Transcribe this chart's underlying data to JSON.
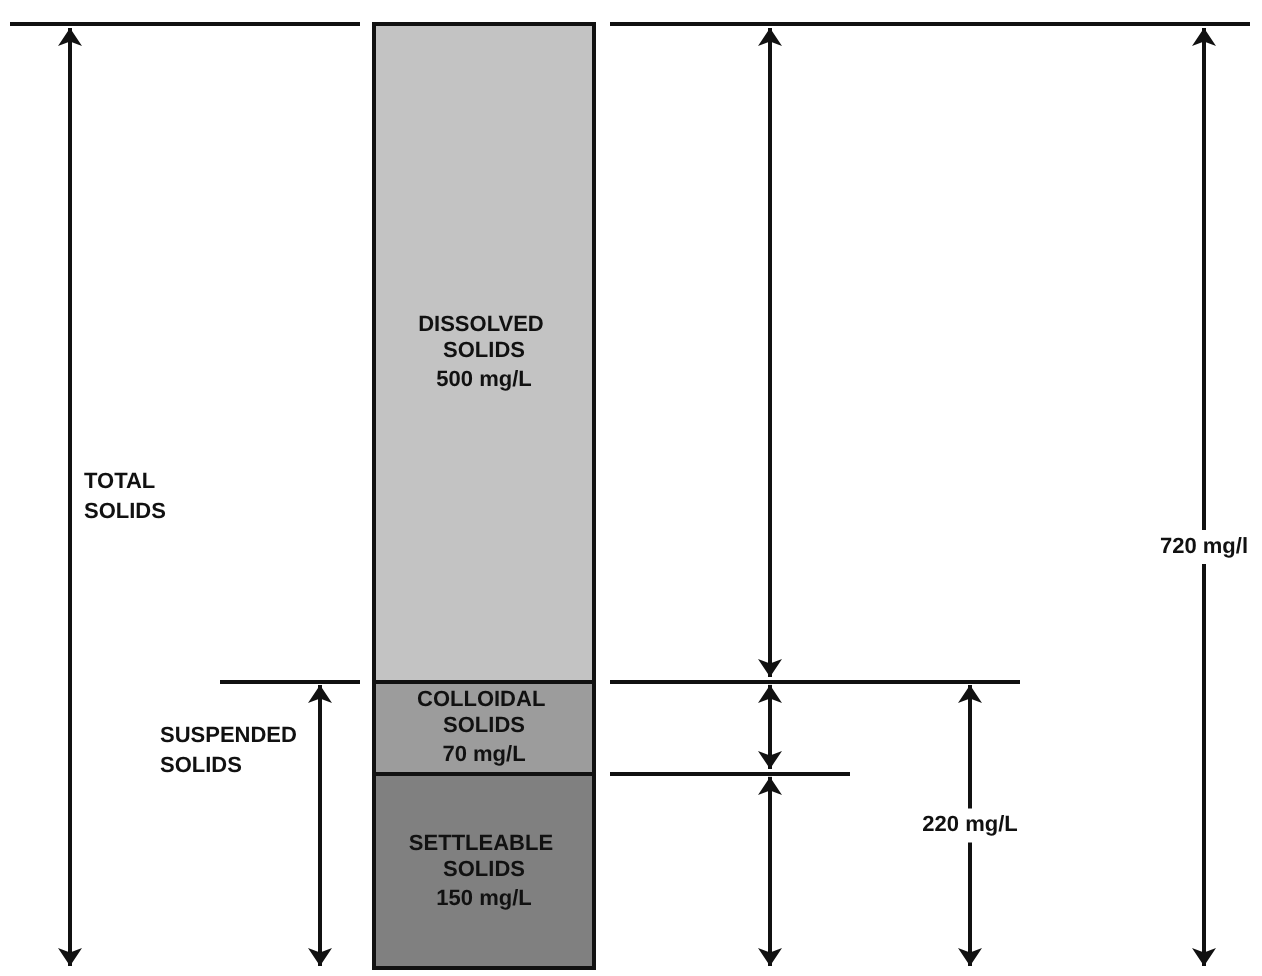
{
  "chart_data": {
    "type": "bar",
    "stacked": true,
    "categories": [
      null
    ],
    "series": [
      {
        "name": "SETTLEABLE SOLIDS",
        "color": "#808080",
        "values": [
          150
        ],
        "value_labels": [
          "150 mg/L"
        ]
      },
      {
        "name": "COLLOIDAL SOLIDS",
        "color": "#9c9c9c",
        "values": [
          70
        ],
        "value_labels": [
          "70 mg/L"
        ]
      },
      {
        "name": "DISSOLVED SOLIDS",
        "color": "#c3c3c3",
        "values": [
          500
        ],
        "value_labels": [
          "500 mg/L"
        ]
      }
    ],
    "annotations": [
      "TOTAL SOLIDS",
      "SUSPENDED SOLIDS",
      "220 mg/L",
      "720 mg/l"
    ],
    "legend": false
  }
}
